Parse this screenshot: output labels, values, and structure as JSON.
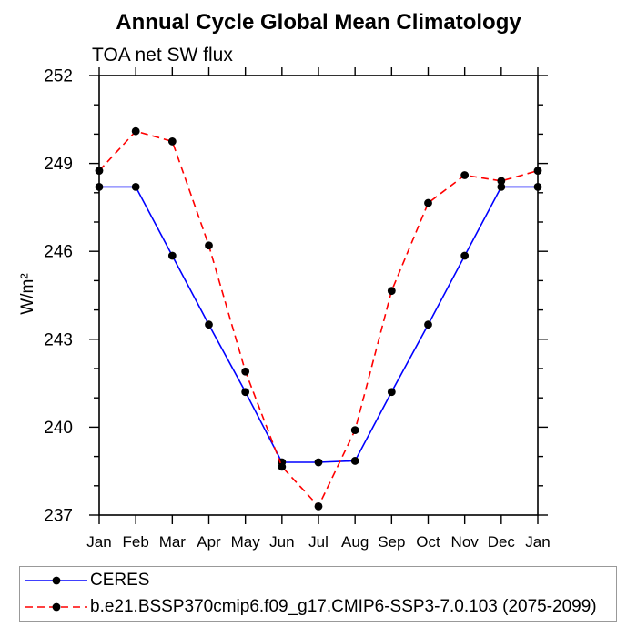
{
  "chart_data": {
    "type": "line",
    "title": "Annual Cycle Global Mean Climatology",
    "subtitle": "TOA net SW flux",
    "xlabel": "",
    "ylabel": "W/m²",
    "categories": [
      "Jan",
      "Feb",
      "Mar",
      "Apr",
      "May",
      "Jun",
      "Jul",
      "Aug",
      "Sep",
      "Oct",
      "Nov",
      "Dec",
      "Jan"
    ],
    "series": [
      {
        "name": "CERES",
        "color": "#0000ff",
        "line_style": "solid",
        "marker": "filled-circle",
        "marker_color": "#000000",
        "values": [
          248.2,
          248.2,
          245.85,
          243.5,
          241.2,
          238.8,
          238.8,
          238.85,
          241.2,
          243.5,
          245.85,
          248.2,
          248.2
        ]
      },
      {
        "name": "b.e21.BSSP370cmip6.f09_g17.CMIP6-SSP3-7.0.103 (2075-2099)",
        "color": "#ff0000",
        "line_style": "dashed",
        "marker": "filled-circle",
        "marker_color": "#000000",
        "values": [
          248.75,
          250.1,
          249.75,
          246.2,
          241.9,
          238.65,
          237.3,
          239.9,
          244.65,
          247.65,
          248.6,
          248.4,
          248.75
        ]
      }
    ],
    "ylim": [
      237,
      252
    ],
    "ytick_step": 3,
    "yminor_step": 1,
    "yticks": [
      237,
      240,
      243,
      246,
      249,
      252
    ],
    "grid": false,
    "axis_color": "#000000",
    "legend_position": "bottom-left-box"
  }
}
